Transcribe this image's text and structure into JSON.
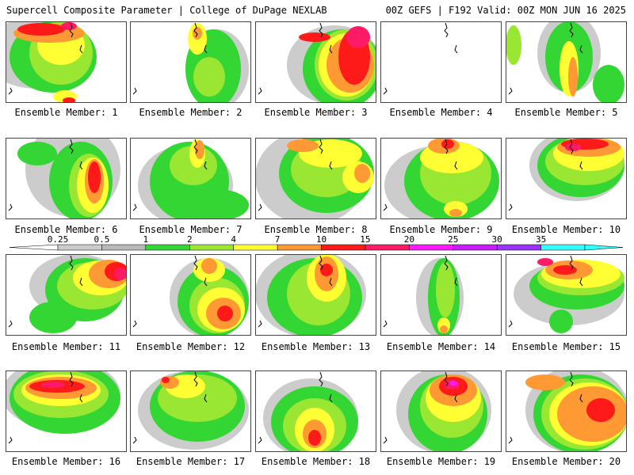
{
  "header": {
    "left": "Supercell Composite Parameter | College of DuPage NEXLAB",
    "right": "00Z GEFS | F192 Valid: 00Z MON JUN 16 2025"
  },
  "legend": {
    "labels": [
      "0.25",
      "0.5",
      "1",
      "2",
      "4",
      "7",
      "10",
      "15",
      "20",
      "25",
      "30",
      "35"
    ],
    "colors": [
      "#cccccc",
      "#b8b8b8",
      "#33d633",
      "#99e633",
      "#ffff33",
      "#ff9933",
      "#ff1a1a",
      "#ff1a66",
      "#ff1aff",
      "#cc1aff",
      "#9933ff",
      "#33ffff"
    ]
  },
  "panels": [
    {
      "label": "Ensemble Member: 1"
    },
    {
      "label": "Ensemble Member: 2"
    },
    {
      "label": "Ensemble Member: 3"
    },
    {
      "label": "Ensemble Member: 4"
    },
    {
      "label": "Ensemble Member: 5"
    },
    {
      "label": "Ensemble Member: 6"
    },
    {
      "label": "Ensemble Member: 7"
    },
    {
      "label": "Ensemble Member: 8"
    },
    {
      "label": "Ensemble Member: 9"
    },
    {
      "label": "Ensemble Member: 10"
    },
    {
      "label": "Ensemble Member: 11"
    },
    {
      "label": "Ensemble Member: 12"
    },
    {
      "label": "Ensemble Member: 13"
    },
    {
      "label": "Ensemble Member: 14"
    },
    {
      "label": "Ensemble Member: 15"
    },
    {
      "label": "Ensemble Member: 16"
    },
    {
      "label": "Ensemble Member: 17"
    },
    {
      "label": "Ensemble Member: 18"
    },
    {
      "label": "Ensemble Member: 19"
    },
    {
      "label": "Ensemble Member: 20"
    }
  ]
}
